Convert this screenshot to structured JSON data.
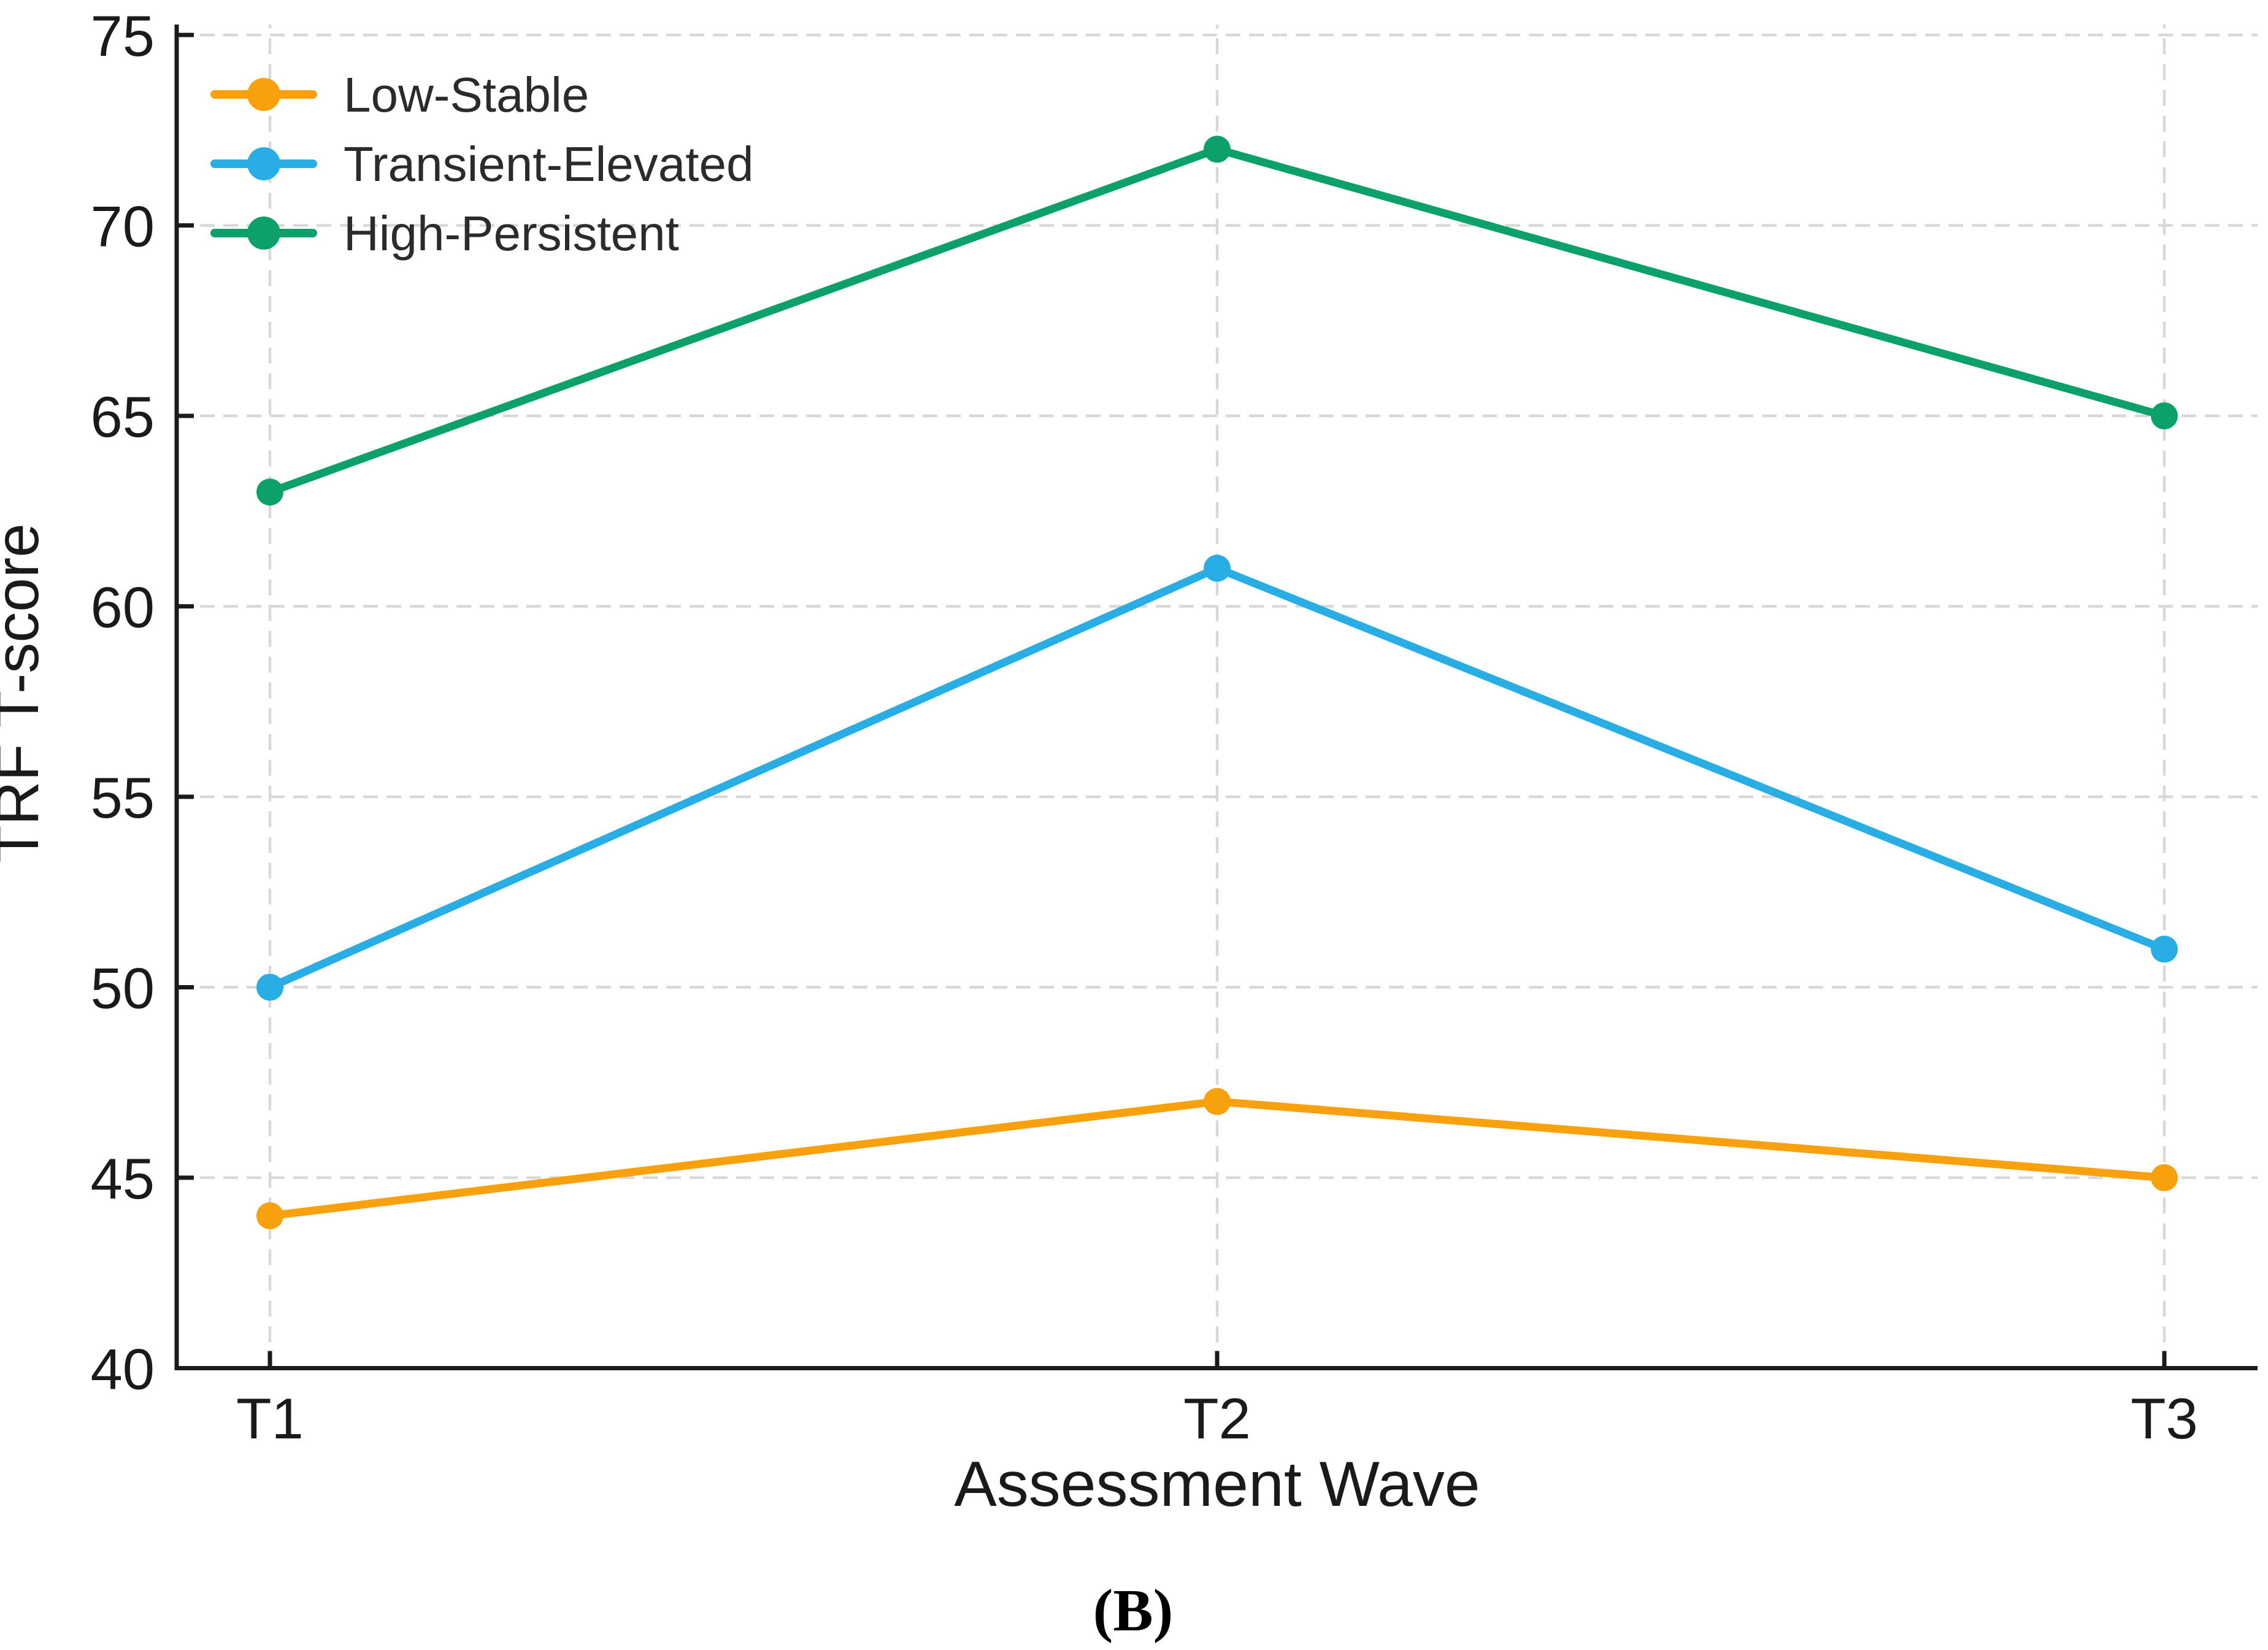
{
  "chart_data": {
    "type": "line",
    "title": "",
    "xlabel": "Assessment Wave",
    "ylabel": "TRF T-score",
    "caption": "(B)",
    "categories": [
      "T1",
      "T2",
      "T3"
    ],
    "y_ticks": [
      40,
      45,
      50,
      55,
      60,
      65,
      70,
      75
    ],
    "ylim": [
      40,
      75
    ],
    "grid": "dashed",
    "legend_position": "upper-left",
    "series": [
      {
        "name": "Low-Stable",
        "color": "#F9A10D",
        "values": [
          44,
          47,
          45
        ]
      },
      {
        "name": "Transient-Elevated",
        "color": "#28AEE4",
        "values": [
          50,
          61,
          51
        ]
      },
      {
        "name": "High-Persistent",
        "color": "#0CA06B",
        "values": [
          63,
          72,
          65
        ]
      }
    ],
    "colors": {
      "background": "#FFFFFF",
      "grid": "#D8D8D8",
      "axis": "#1A1A1A",
      "tick_text": "#1A1A1A",
      "legend_text": "#2B2B2B"
    }
  }
}
